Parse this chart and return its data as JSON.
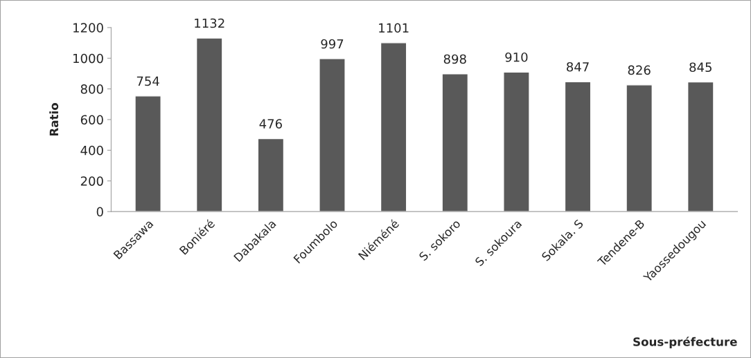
{
  "chart_data": {
    "type": "bar",
    "categories": [
      "Bassawa",
      "Boniéré",
      "Dabakala",
      "Foumbolo",
      "Niéméné",
      "S. sokoro",
      "S. sokoura",
      "Sokala. S",
      "Tendene-B",
      "Yaossedougou"
    ],
    "values": [
      754,
      1132,
      476,
      997,
      1101,
      898,
      910,
      847,
      826,
      845
    ],
    "color": "#595959",
    "xlabel": "Sous-préfecture",
    "ylabel": "Ratio",
    "ylim": [
      0,
      1200
    ],
    "yticks": [
      0,
      200,
      400,
      600,
      800,
      1000,
      1200
    ],
    "data_labels": true,
    "grid": false,
    "legend": false
  }
}
